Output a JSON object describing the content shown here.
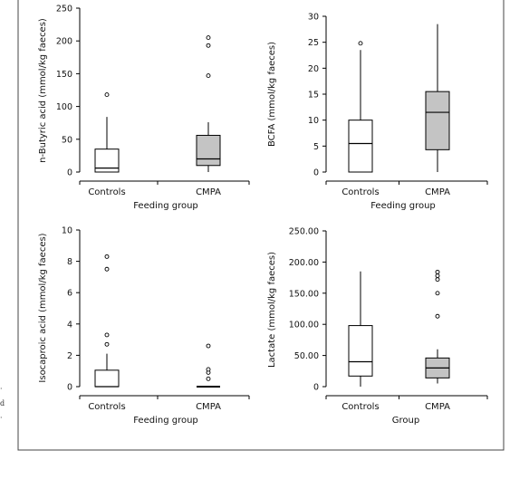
{
  "page_artifacts": [
    "·",
    "d",
    "·"
  ],
  "colors": {
    "controls_fill": "#ffffff",
    "cmpa_fill": "#c4c4c4",
    "stroke": "#000000"
  },
  "chart_data": [
    {
      "type": "box",
      "title": "",
      "ylabel": "n-Butyric acid (mmol/kg faeces)",
      "xlabel": "Feeding group",
      "categories": [
        "Controls",
        "CMPA"
      ],
      "ylim": [
        0,
        250
      ],
      "yticks": [
        "0",
        "50",
        "100",
        "150",
        "200",
        "250"
      ],
      "boxes": [
        {
          "category": "Controls",
          "min": 0,
          "q1": 0,
          "median": 6,
          "q3": 35,
          "max": 84,
          "outliers": [
            118
          ]
        },
        {
          "category": "CMPA",
          "min": 0,
          "q1": 10,
          "median": 20,
          "q3": 56,
          "max": 76,
          "outliers": [
            147,
            193,
            205
          ]
        }
      ]
    },
    {
      "type": "box",
      "title": "",
      "ylabel": "BCFA (mmol/kg faeces)",
      "xlabel": "Feeding group",
      "categories": [
        "Controls",
        "CMPA"
      ],
      "ylim": [
        0,
        30
      ],
      "yticks": [
        "0",
        "5",
        "10",
        "15",
        "20",
        "25",
        "30"
      ],
      "boxes": [
        {
          "category": "Controls",
          "min": 0,
          "q1": 0,
          "median": 5.5,
          "q3": 10,
          "max": 23.5,
          "outliers": [
            24.8
          ]
        },
        {
          "category": "CMPA",
          "min": 0,
          "q1": 4.3,
          "median": 11.5,
          "q3": 15.5,
          "max": 28.5,
          "outliers": []
        }
      ]
    },
    {
      "type": "box",
      "title": "",
      "ylabel": "Isocaproic acid (mmol/kg faeces)",
      "xlabel": "Feeding group",
      "categories": [
        "Controls",
        "CMPA"
      ],
      "ylim": [
        0,
        10
      ],
      "yticks": [
        "0",
        "2",
        "4",
        "6",
        "8",
        "10"
      ],
      "boxes": [
        {
          "category": "Controls",
          "min": 0,
          "q1": 0,
          "median": 0,
          "q3": 1.05,
          "max": 2.1,
          "outliers": [
            2.7,
            3.3,
            7.5,
            8.3
          ]
        },
        {
          "category": "CMPA",
          "min": 0,
          "q1": 0,
          "median": 0,
          "q3": 0,
          "max": 0,
          "outliers": [
            0.5,
            0.9,
            1.1,
            2.6
          ]
        }
      ]
    },
    {
      "type": "box",
      "title": "",
      "ylabel": "Lactate (mmol/kg faeces)",
      "xlabel": "Group",
      "categories": [
        "Controls",
        "CMPA"
      ],
      "ylim": [
        0,
        250
      ],
      "yticks": [
        "0",
        "50.00",
        "100.00",
        "150.00",
        "200.00",
        "250.00"
      ],
      "boxes": [
        {
          "category": "Controls",
          "min": 0,
          "q1": 17,
          "median": 40,
          "q3": 98,
          "max": 185,
          "outliers": []
        },
        {
          "category": "CMPA",
          "min": 5,
          "q1": 14,
          "median": 30,
          "q3": 46,
          "max": 60,
          "outliers": [
            113,
            150,
            172,
            178,
            184
          ]
        }
      ]
    }
  ]
}
